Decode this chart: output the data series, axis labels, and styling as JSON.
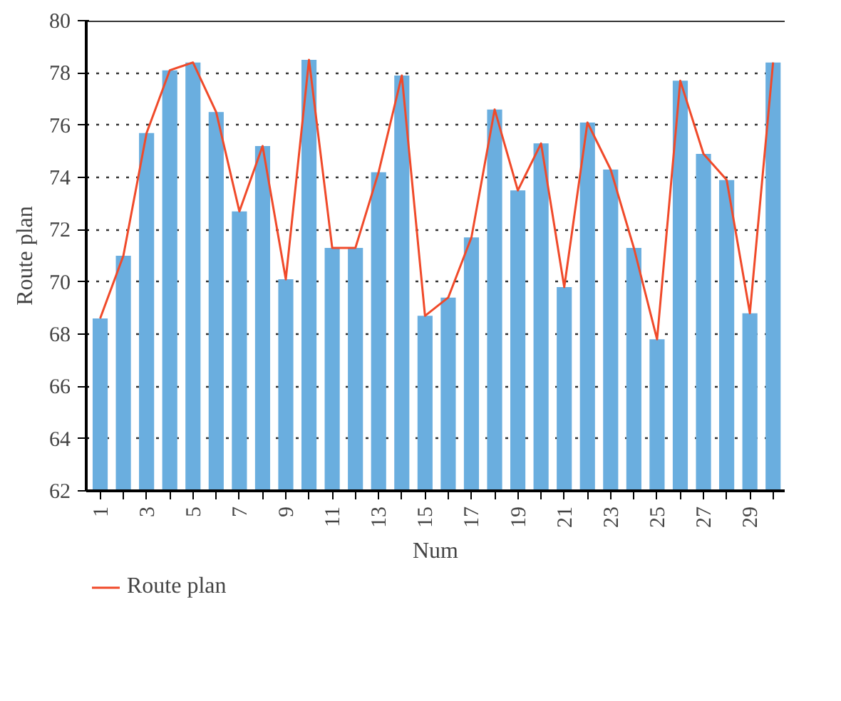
{
  "chart_data": {
    "type": "bar",
    "xlabel": "Num",
    "ylabel": "Route plan",
    "categories": [
      "1",
      null,
      "3",
      null,
      "5",
      null,
      "7",
      null,
      "9",
      null,
      "11",
      null,
      "13",
      null,
      "15",
      null,
      "17",
      null,
      "19",
      null,
      "21",
      null,
      "23",
      null,
      "25",
      null,
      "27",
      null,
      "29",
      null
    ],
    "series": [
      {
        "color": "#6aaedf",
        "values": [
          68.6,
          71.0,
          75.7,
          78.1,
          78.4,
          76.5,
          72.7,
          75.2,
          70.1,
          78.5,
          71.3,
          71.3,
          74.2,
          77.9,
          68.7,
          69.4,
          71.7,
          76.6,
          73.5,
          75.3,
          69.8,
          76.1,
          74.3,
          71.3,
          67.8,
          77.7,
          74.9,
          73.9,
          68.8,
          78.4
        ]
      },
      {
        "type": "line",
        "name": "Route plan",
        "color": "#f04a2a",
        "values": [
          68.6,
          71.0,
          75.7,
          78.1,
          78.4,
          76.5,
          72.7,
          75.2,
          70.1,
          78.5,
          71.3,
          71.3,
          74.2,
          77.9,
          68.7,
          69.4,
          71.7,
          76.6,
          73.5,
          75.3,
          69.8,
          76.1,
          74.3,
          71.3,
          67.8,
          77.7,
          74.9,
          73.9,
          68.8,
          78.4
        ]
      }
    ],
    "ylim": [
      62,
      80
    ],
    "yticks": [
      62,
      64,
      66,
      68,
      70,
      72,
      74,
      76,
      78,
      80
    ],
    "grid": "y",
    "legend": "bottom left"
  }
}
